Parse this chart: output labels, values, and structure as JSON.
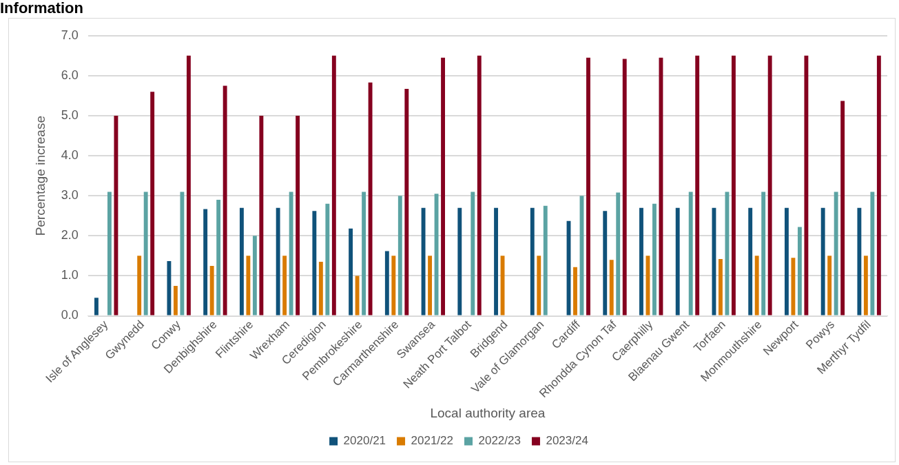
{
  "chart_data": {
    "type": "bar",
    "title": "Information",
    "xlabel": "Local authority area",
    "ylabel": "Percentage increase",
    "categories": [
      "Isle of Anglesey",
      "Gwynedd",
      "Conwy",
      "Denbighshire",
      "Flintshire",
      "Wrexham",
      "Ceredigion",
      "Pembrokeshire",
      "Carmarthenshire",
      "Swansea",
      "Neath Port Talbot",
      "Bridgend",
      "Vale of Glamorgan",
      "Cardiff",
      "Rhondda Cynon Taf",
      "Caerphilly",
      "Blaenau Gwent",
      "Torfaen",
      "Monmouthshire",
      "Newport",
      "Powys",
      "Merthyr Tydfil"
    ],
    "series": [
      {
        "name": "2020/21",
        "color": "#10527a",
        "values": [
          0.45,
          null,
          1.37,
          2.67,
          2.7,
          2.7,
          2.62,
          2.18,
          1.62,
          2.7,
          2.7,
          2.7,
          2.7,
          2.37,
          2.62,
          2.7,
          2.7,
          2.7,
          2.7,
          2.7,
          2.7,
          2.7
        ]
      },
      {
        "name": "2021/22",
        "color": "#d97b00",
        "values": [
          null,
          1.5,
          0.75,
          1.25,
          1.5,
          1.5,
          1.35,
          1.0,
          1.5,
          1.5,
          null,
          1.5,
          1.5,
          1.22,
          1.4,
          1.5,
          null,
          1.42,
          1.5,
          1.45,
          1.5,
          1.5
        ]
      },
      {
        "name": "2022/23",
        "color": "#5ba3a3",
        "values": [
          3.1,
          3.1,
          3.1,
          2.9,
          2.0,
          3.1,
          2.8,
          3.1,
          3.0,
          3.05,
          3.1,
          null,
          2.75,
          3.0,
          3.08,
          2.8,
          3.1,
          3.1,
          3.1,
          2.22,
          3.1,
          3.1
        ]
      },
      {
        "name": "2023/24",
        "color": "#85001f",
        "values": [
          5.0,
          5.6,
          6.5,
          5.75,
          5.0,
          5.0,
          6.5,
          5.83,
          5.67,
          6.45,
          6.5,
          null,
          null,
          6.45,
          6.42,
          6.45,
          6.5,
          6.5,
          6.5,
          6.5,
          5.37,
          6.5
        ]
      }
    ],
    "ylim": [
      0,
      7
    ],
    "yticks": [
      {
        "value": 0,
        "label": "0.0"
      },
      {
        "value": 1,
        "label": "1.0"
      },
      {
        "value": 2,
        "label": "2.0"
      },
      {
        "value": 3,
        "label": "3.0"
      },
      {
        "value": 4,
        "label": "4.0"
      },
      {
        "value": 5,
        "label": "5.0"
      },
      {
        "value": 6,
        "label": "6.0"
      },
      {
        "value": 7,
        "label": "7.0"
      }
    ],
    "grid": "y",
    "legend": "bottom"
  }
}
